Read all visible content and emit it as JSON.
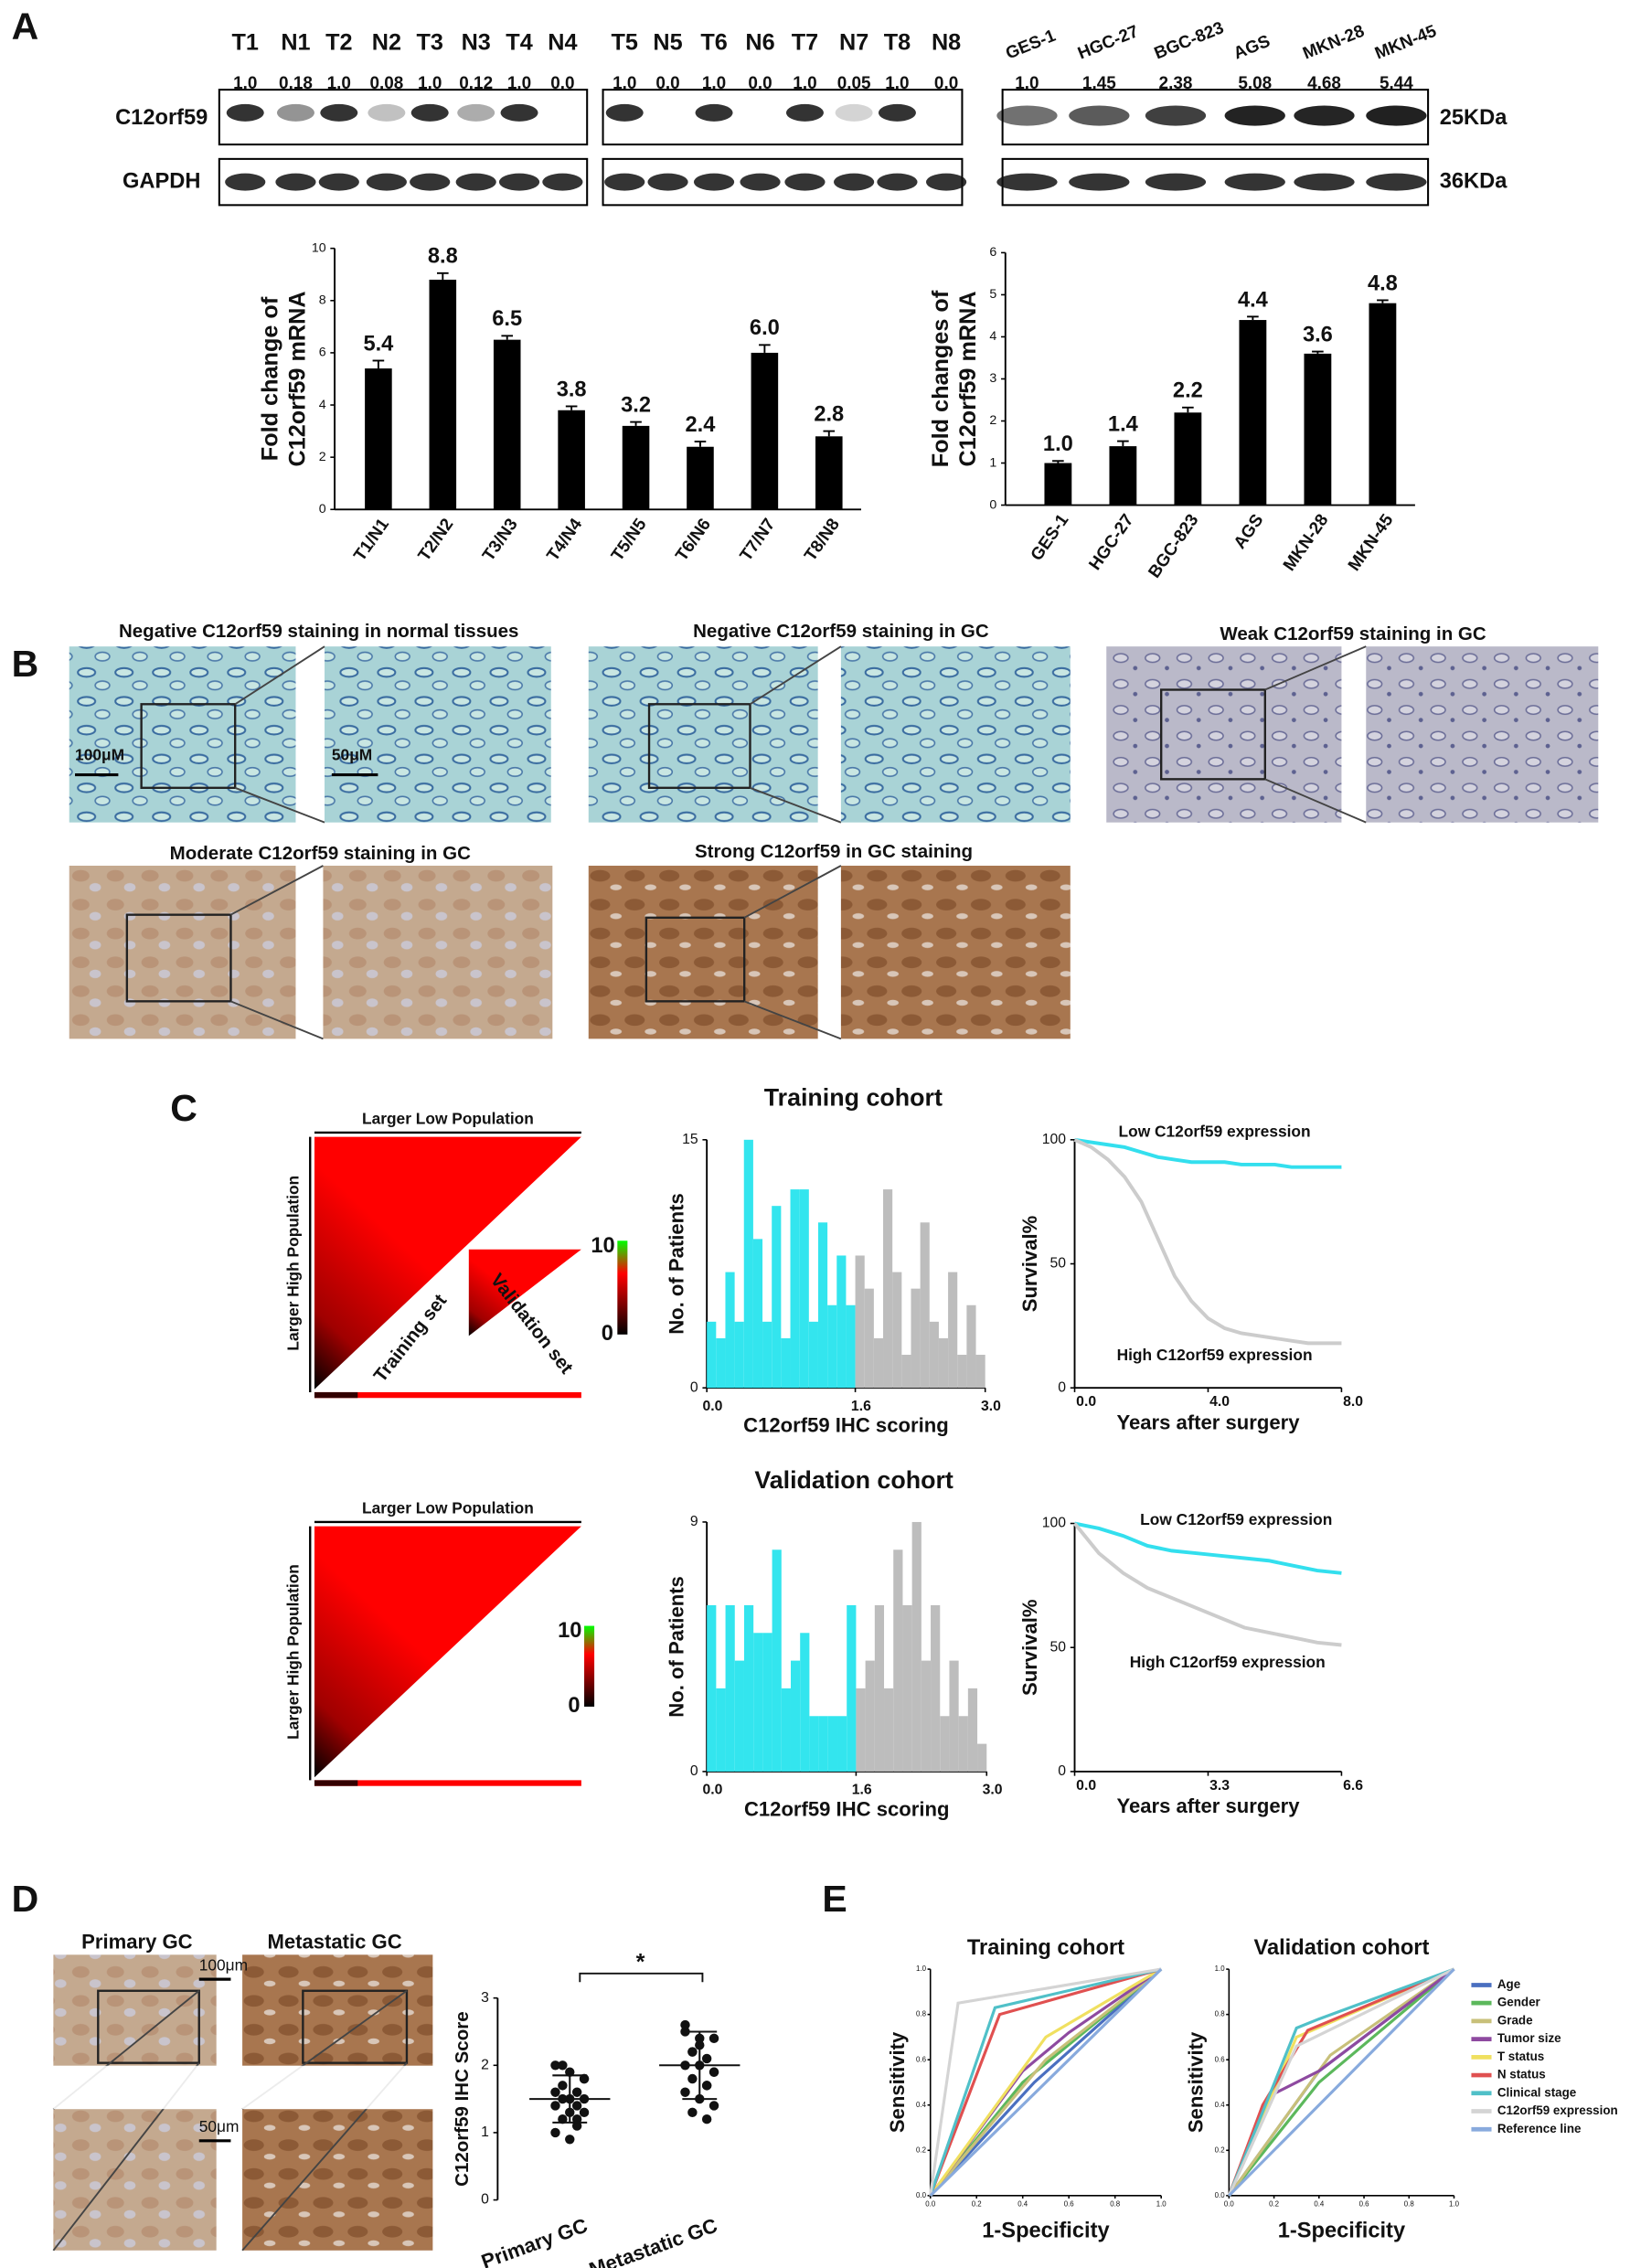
{
  "panel_labels": [
    "A",
    "B",
    "C",
    "D",
    "E"
  ],
  "blot": {
    "tissue_lanes": [
      "T1",
      "N1",
      "T2",
      "N2",
      "T3",
      "N3",
      "T4",
      "N4",
      "T5",
      "N5",
      "T6",
      "N6",
      "T7",
      "N7",
      "T8",
      "N8"
    ],
    "tissue_ratios": [
      "1.0",
      "0.18",
      "1.0",
      "0.08",
      "1.0",
      "0.12",
      "1.0",
      "0.0",
      "1.0",
      "0.0",
      "1.0",
      "0.0",
      "1.0",
      "0.05",
      "1.0",
      "0.0"
    ],
    "cell_lanes": [
      "GES-1",
      "HGC-27",
      "BGC-823",
      "AGS",
      "MKN-28",
      "MKN-45"
    ],
    "cell_ratios": [
      "1.0",
      "1.45",
      "2.38",
      "5.08",
      "4.68",
      "5.44"
    ],
    "proteins": [
      "C12orf59",
      "GAPDH"
    ],
    "sizes": [
      "25KDa",
      "36KDa"
    ]
  },
  "ihc": {
    "titles": [
      "Negative C12orf59 staining in normal tissues",
      "Negative C12orf59 staining in GC",
      "Weak C12orf59 staining in GC",
      "Moderate C12orf59 staining in GC",
      "Strong C12orf59 in GC staining"
    ],
    "scale_bars": [
      "100μM",
      "50μM"
    ]
  },
  "heatmaps": {
    "x_label": "Larger Low Population",
    "y_label": "Larger High Population",
    "inset_labels": [
      "Training set",
      "Validation set"
    ],
    "colorbar_labels": [
      "10",
      "0"
    ]
  },
  "metastasis": {
    "titles": [
      "Primary GC",
      "Metastatic GC"
    ],
    "scale_bars": [
      "100μm",
      "50μm"
    ]
  },
  "chart_data": [
    {
      "type": "bar",
      "categories": [
        "T1/N1",
        "T2/N2",
        "T3/N3",
        "T4/N4",
        "T5/N5",
        "T6/N6",
        "T7/N7",
        "T8/N8"
      ],
      "values": [
        5.4,
        8.8,
        6.5,
        3.8,
        3.2,
        2.4,
        6.0,
        2.8
      ],
      "value_labels": [
        "5.4",
        "8.8",
        "6.5",
        "3.8",
        "3.2",
        "2.4",
        "6.0",
        "2.8"
      ],
      "errors": [
        0.3,
        0.25,
        0.15,
        0.15,
        0.15,
        0.2,
        0.3,
        0.2
      ],
      "color": "#000000",
      "ylim": [
        0,
        10
      ],
      "yticks": [
        0,
        2,
        4,
        6,
        8,
        10
      ],
      "y_label": [
        "Fold change of",
        "C12orf59 mRNA"
      ]
    },
    {
      "type": "bar",
      "categories": [
        "GES-1",
        "HGC-27",
        "BGC-823",
        "AGS",
        "MKN-28",
        "MKN-45"
      ],
      "values": [
        1.0,
        1.4,
        2.2,
        4.4,
        3.6,
        4.8
      ],
      "value_labels": [
        "1.0",
        "1.4",
        "2.2",
        "4.4",
        "3.6",
        "4.8"
      ],
      "errors": [
        0.05,
        0.12,
        0.12,
        0.08,
        0.05,
        0.07
      ],
      "color": "#000000",
      "ylim": [
        0,
        6
      ],
      "yticks": [
        0,
        1,
        2,
        3,
        4,
        5,
        6
      ],
      "y_label": [
        "Fold changes of",
        "C12orf59 mRNA"
      ]
    },
    {
      "type": "histogram",
      "title": "Training cohort",
      "bins": [
        0,
        0.1,
        0.2,
        0.3,
        0.4,
        0.5,
        0.6,
        0.7,
        0.8,
        0.9,
        1,
        1.1,
        1.2,
        1.3,
        1.4,
        1.5,
        1.6,
        1.7,
        1.8,
        1.9,
        2,
        2.1,
        2.2,
        2.3,
        2.4,
        2.5,
        2.6,
        2.7,
        2.8,
        2.9,
        3
      ],
      "values": [
        4,
        3,
        7,
        4,
        15,
        9,
        4,
        11,
        3,
        12,
        12,
        4,
        10,
        5,
        8,
        5,
        8,
        6,
        3,
        12,
        7,
        2,
        6,
        10,
        4,
        3,
        7,
        2,
        5,
        2
      ],
      "colors": [
        "#33e5ee",
        "#33e5ee",
        "#33e5ee",
        "#33e5ee",
        "#33e5ee",
        "#33e5ee",
        "#33e5ee",
        "#33e5ee",
        "#33e5ee",
        "#33e5ee",
        "#33e5ee",
        "#33e5ee",
        "#33e5ee",
        "#33e5ee",
        "#33e5ee",
        "#33e5ee",
        "#bdbdbd",
        "#bdbdbd",
        "#bdbdbd",
        "#bdbdbd",
        "#bdbdbd",
        "#bdbdbd",
        "#bdbdbd",
        "#bdbdbd",
        "#bdbdbd",
        "#bdbdbd",
        "#bdbdbd",
        "#bdbdbd",
        "#bdbdbd",
        "#bdbdbd"
      ],
      "xlim": [
        0,
        3
      ],
      "xticks": [
        {
          "value": 0,
          "label": "0.0"
        },
        1.6,
        {
          "value": 3,
          "label": "3.0"
        }
      ],
      "ylim": [
        0,
        15
      ],
      "yticks": [
        0,
        15
      ],
      "x_label": "C12orf59 IHC scoring",
      "y_label": "No. of Patients"
    },
    {
      "type": "line",
      "series": [
        {
          "name": "Low C12orf59 expression",
          "color": "#33dfee",
          "x": [
            0,
            0.5,
            1,
            1.5,
            2,
            2.5,
            3,
            3.5,
            4,
            4.5,
            5,
            5.5,
            6,
            6.5,
            7,
            7.5,
            8
          ],
          "values": [
            100,
            99,
            98,
            97,
            95,
            93,
            92,
            91,
            91,
            91,
            90,
            90,
            90,
            89,
            89,
            89,
            89
          ]
        },
        {
          "name": "High C12orf59 expression",
          "color": "#cccccc",
          "x": [
            0,
            0.5,
            1,
            1.5,
            2,
            2.5,
            3,
            3.5,
            4,
            4.5,
            5,
            5.5,
            6,
            6.5,
            7,
            7.5,
            8
          ],
          "values": [
            100,
            97,
            92,
            85,
            75,
            60,
            45,
            35,
            28,
            24,
            22,
            21,
            20,
            19,
            18,
            18,
            18
          ]
        }
      ],
      "xlim": [
        0,
        8
      ],
      "xticks": [
        {
          "value": 0,
          "label": "0.0"
        },
        {
          "value": 4,
          "label": "4.0"
        },
        {
          "value": 8,
          "label": "8.0"
        }
      ],
      "ylim": [
        0,
        100
      ],
      "yticks": [
        0,
        50,
        100
      ],
      "x_label": "Years after surgery",
      "y_label": "Survival%"
    },
    {
      "type": "histogram",
      "title": "Validation cohort",
      "bins": [
        0,
        0.1,
        0.2,
        0.3,
        0.4,
        0.5,
        0.6,
        0.7,
        0.8,
        0.9,
        1,
        1.1,
        1.2,
        1.3,
        1.4,
        1.5,
        1.6,
        1.7,
        1.8,
        1.9,
        2,
        2.1,
        2.2,
        2.3,
        2.4,
        2.5,
        2.6,
        2.7,
        2.8,
        2.9,
        3
      ],
      "values": [
        6,
        3,
        6,
        4,
        6,
        5,
        5,
        8,
        3,
        4,
        5,
        2,
        2,
        2,
        2,
        6,
        3,
        4,
        6,
        3,
        8,
        6,
        9,
        4,
        6,
        2,
        4,
        2,
        3,
        1
      ],
      "colors": [
        "#33e5ee",
        "#33e5ee",
        "#33e5ee",
        "#33e5ee",
        "#33e5ee",
        "#33e5ee",
        "#33e5ee",
        "#33e5ee",
        "#33e5ee",
        "#33e5ee",
        "#33e5ee",
        "#33e5ee",
        "#33e5ee",
        "#33e5ee",
        "#33e5ee",
        "#33e5ee",
        "#bdbdbd",
        "#bdbdbd",
        "#bdbdbd",
        "#bdbdbd",
        "#bdbdbd",
        "#bdbdbd",
        "#bdbdbd",
        "#bdbdbd",
        "#bdbdbd",
        "#bdbdbd",
        "#bdbdbd",
        "#bdbdbd",
        "#bdbdbd",
        "#bdbdbd"
      ],
      "xlim": [
        0,
        3
      ],
      "xticks": [
        {
          "value": 0,
          "label": "0.0"
        },
        1.6,
        {
          "value": 3,
          "label": "3.0"
        }
      ],
      "ylim": [
        0,
        9
      ],
      "yticks": [
        0,
        9
      ],
      "x_label": "C12orf59 IHC scoring",
      "y_label": "No. of Patients"
    },
    {
      "type": "line",
      "series": [
        {
          "name": "Low C12orf59 expression",
          "color": "#33dfee",
          "x": [
            0,
            0.6,
            1.2,
            1.8,
            2.4,
            3,
            3.6,
            4.2,
            4.8,
            5.4,
            6,
            6.6
          ],
          "values": [
            100,
            98,
            95,
            91,
            89,
            88,
            87,
            86,
            85,
            83,
            81,
            80
          ]
        },
        {
          "name": "High C12orf59 expression",
          "color": "#cccccc",
          "x": [
            0,
            0.6,
            1.2,
            1.8,
            2.4,
            3,
            3.6,
            4.2,
            4.8,
            5.4,
            6,
            6.6
          ],
          "values": [
            100,
            88,
            80,
            74,
            70,
            66,
            62,
            58,
            56,
            54,
            52,
            51
          ]
        }
      ],
      "xlim": [
        0,
        6.6
      ],
      "xticks": [
        {
          "value": 0,
          "label": "0.0"
        },
        3.3,
        6.6
      ],
      "ylim": [
        0,
        100
      ],
      "yticks": [
        0,
        50,
        100
      ],
      "x_label": "Years after surgery",
      "y_label": "Survival%"
    },
    {
      "type": "dot",
      "categories": [
        "Primary GC",
        "Metastatic GC"
      ],
      "groups": [
        [
          2.0,
          1.9,
          1.8,
          1.7,
          1.6,
          1.6,
          1.5,
          1.5,
          1.5,
          1.4,
          1.4,
          1.3,
          1.3,
          1.2,
          1.1,
          1.0,
          0.9,
          1.8,
          2.0,
          1.2
        ],
        [
          2.5,
          2.3,
          2.4,
          2.2,
          2.1,
          2.0,
          2.0,
          1.9,
          1.8,
          1.7,
          1.6,
          1.5,
          1.4,
          1.3,
          1.2,
          2.6,
          2.4,
          1.9,
          2.2,
          1.7
        ]
      ],
      "means": [
        1.5,
        2.0
      ],
      "sd": [
        0.35,
        0.5
      ],
      "ylim": [
        0,
        3
      ],
      "yticks": [
        0,
        1,
        2,
        3
      ],
      "y_label": "C12orf59 IHC Score",
      "annotation": "*"
    },
    {
      "type": "roc",
      "titles": [
        "Training cohort",
        "Validation cohort"
      ],
      "xlim": [
        0,
        1
      ],
      "ylim": [
        0,
        1
      ],
      "ticks": [
        {
          "value": 0,
          "label": "0.0"
        },
        {
          "value": 0.2,
          "label": "0.2"
        },
        {
          "value": 0.4,
          "label": "0.4"
        },
        {
          "value": 0.6,
          "label": "0.6"
        },
        {
          "value": 0.8,
          "label": "0.8"
        },
        {
          "value": 1,
          "label": "1.0"
        }
      ],
      "x_label": "1-Specificity",
      "y_label": "Sensitivity",
      "series": [
        {
          "name": "Age",
          "color": "#4a6fc0",
          "training": {
            "x": [
              0,
              0.45,
              1
            ],
            "values": [
              0,
              0.5,
              1
            ]
          },
          "validation": {
            "x": [
              0,
              0.4,
              1
            ],
            "values": [
              0,
              0.55,
              1
            ]
          }
        },
        {
          "name": "Gender",
          "color": "#5cb85c",
          "training": {
            "x": [
              0,
              0.4,
              1
            ],
            "values": [
              0,
              0.5,
              1
            ]
          },
          "validation": {
            "x": [
              0,
              0.4,
              1
            ],
            "values": [
              0,
              0.5,
              1
            ]
          }
        },
        {
          "name": "Grade",
          "color": "#c8c07a",
          "training": {
            "x": [
              0,
              0.5,
              1
            ],
            "values": [
              0,
              0.6,
              1
            ]
          },
          "validation": {
            "x": [
              0,
              0.45,
              1
            ],
            "values": [
              0,
              0.62,
              1
            ]
          }
        },
        {
          "name": "Tumor size",
          "color": "#8e4aa0",
          "training": {
            "x": [
              0,
              0.4,
              0.6,
              1
            ],
            "values": [
              0,
              0.55,
              0.72,
              1
            ]
          },
          "validation": {
            "x": [
              0,
              0.2,
              0.4,
              1
            ],
            "values": [
              0,
              0.45,
              0.55,
              1
            ]
          }
        },
        {
          "name": "T status",
          "color": "#f0e060",
          "training": {
            "x": [
              0,
              0.5,
              1
            ],
            "values": [
              0,
              0.7,
              1
            ]
          },
          "validation": {
            "x": [
              0,
              0.3,
              1
            ],
            "values": [
              0,
              0.7,
              1
            ]
          }
        },
        {
          "name": "N status",
          "color": "#e05050",
          "training": {
            "x": [
              0,
              0.3,
              1
            ],
            "values": [
              0,
              0.8,
              1
            ]
          },
          "validation": {
            "x": [
              0,
              0.15,
              0.35,
              1
            ],
            "values": [
              0,
              0.4,
              0.73,
              1
            ]
          }
        },
        {
          "name": "Clinical stage",
          "color": "#50c0c8",
          "training": {
            "x": [
              0,
              0.28,
              1
            ],
            "values": [
              0,
              0.83,
              1
            ]
          },
          "validation": {
            "x": [
              0,
              0.3,
              0.4,
              1
            ],
            "values": [
              0,
              0.74,
              0.78,
              1
            ]
          }
        },
        {
          "name": "C12orf59 expression",
          "color": "#d4d4d4",
          "training": {
            "x": [
              0,
              0.12,
              1
            ],
            "values": [
              0,
              0.85,
              1
            ]
          },
          "validation": {
            "x": [
              0,
              0.3,
              1
            ],
            "values": [
              0,
              0.66,
              1
            ]
          }
        },
        {
          "name": "Reference line",
          "color": "#88aadd",
          "training": {
            "x": [
              0,
              1
            ],
            "values": [
              0,
              1
            ]
          },
          "validation": {
            "x": [
              0,
              1
            ],
            "values": [
              0,
              1
            ]
          }
        }
      ]
    }
  ]
}
